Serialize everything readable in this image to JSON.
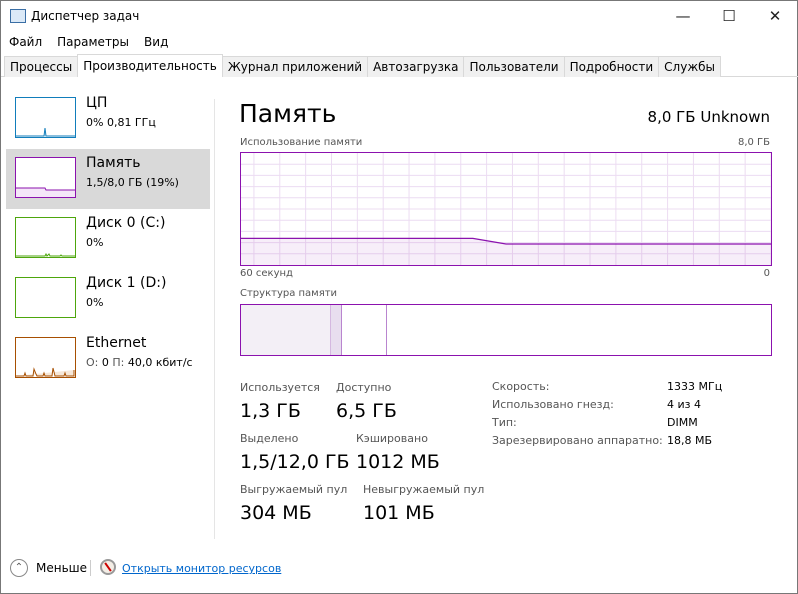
{
  "window": {
    "title": "Диспетчер задач",
    "icon": "task-manager-icon",
    "controls": [
      "minimize",
      "maximize",
      "close"
    ]
  },
  "menu": [
    "Файл",
    "Параметры",
    "Вид"
  ],
  "tabs": [
    {
      "label": "Процессы",
      "active": false
    },
    {
      "label": "Производительность",
      "active": true
    },
    {
      "label": "Журнал приложений",
      "active": false
    },
    {
      "label": "Автозагрузка",
      "active": false
    },
    {
      "label": "Пользователи",
      "active": false
    },
    {
      "label": "Подробности",
      "active": false
    },
    {
      "label": "Службы",
      "active": false
    }
  ],
  "sidebar": [
    {
      "name": "ЦП",
      "sub": "0% 0,81 ГГц",
      "color": "#117dbb",
      "selected": false
    },
    {
      "name": "Память",
      "sub": "1,5/8,0 ГБ (19%)",
      "color": "#8b12ae",
      "selected": true
    },
    {
      "name": "Диск 0 (C:)",
      "sub": "0%",
      "color": "#4da60c",
      "selected": false
    },
    {
      "name": "Диск 1 (D:)",
      "sub": "0%",
      "color": "#4da60c",
      "selected": false
    },
    {
      "name": "Ethernet",
      "sub_prefix_send": "О:",
      "sub_send": "0",
      "sub_prefix_recv": "П:",
      "sub_recv": "40,0 кбит/с",
      "color": "#a74f01",
      "selected": false
    }
  ],
  "main": {
    "title": "Память",
    "total": "8,0 ГБ Unknown",
    "usage_label": "Использование памяти",
    "usage_max": "8,0 ГБ",
    "time_left": "60 секунд",
    "time_right": "0",
    "structure_label": "Структура памяти",
    "accent": "#8b12ae",
    "usage_history_gb": [
      1.9,
      1.9,
      1.9,
      1.9,
      1.9,
      1.9,
      1.9,
      1.9,
      1.5,
      1.5,
      1.5,
      1.5,
      1.5,
      1.5,
      1.5,
      1.5,
      1.5
    ],
    "structure_gb": {
      "in_use": 1.3,
      "modified": 0.15,
      "standby": 0.8,
      "free": 5.75
    },
    "stats": [
      {
        "label": "Используется",
        "value": "1,3 ГБ"
      },
      {
        "label": "Доступно",
        "value": "6,5 ГБ"
      },
      {
        "label": "Выделено",
        "value": "1,5/12,0 ГБ"
      },
      {
        "label": "Кэшировано",
        "value": "1012 МБ"
      },
      {
        "label": "Выгружаемый пул",
        "value": "304 МБ"
      },
      {
        "label": "Невыгружаемый пул",
        "value": "101 МБ"
      }
    ],
    "specs": [
      {
        "key": "Скорость:",
        "value": "1333 МГц"
      },
      {
        "key": "Использовано гнезд:",
        "value": "4 из 4"
      },
      {
        "key": "Тип:",
        "value": "DIMM"
      },
      {
        "key": "Зарезервировано аппаратно:",
        "value": "18,8 МБ"
      }
    ]
  },
  "footer": {
    "less": "Меньше",
    "monitor_link": "Открыть монитор ресурсов"
  }
}
